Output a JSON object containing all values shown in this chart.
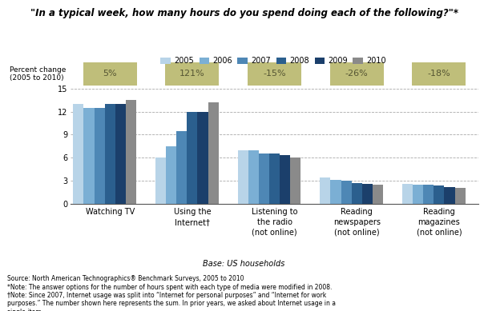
{
  "title": "\"In a typical week, how many hours do you spend doing each of the following?\"*",
  "categories": [
    "Watching TV",
    "Using the\nInternet†",
    "Listening to\nthe radio\n(not online)",
    "Reading\nnewspapers\n(not online)",
    "Reading\nmagazines\n(not online)"
  ],
  "years": [
    "2005",
    "2006",
    "2007",
    "2008",
    "2009",
    "2010"
  ],
  "bar_colors": [
    "#b8d4e8",
    "#7bafd4",
    "#4e87b5",
    "#2b5f8e",
    "#1b3f6b",
    "#8a8a8a"
  ],
  "values": [
    [
      13.0,
      12.5,
      12.5,
      13.0,
      13.0,
      13.5
    ],
    [
      6.0,
      7.5,
      9.5,
      12.0,
      12.0,
      13.2
    ],
    [
      7.0,
      7.0,
      6.5,
      6.5,
      6.3,
      6.0
    ],
    [
      3.4,
      3.1,
      3.0,
      2.7,
      2.6,
      2.5
    ],
    [
      2.6,
      2.5,
      2.5,
      2.4,
      2.2,
      2.1
    ]
  ],
  "percent_changes": [
    "5%",
    "121%",
    "-15%",
    "-26%",
    "-18%"
  ],
  "percent_box_color": "#bfbe7a",
  "percent_box_text_color": "#555533",
  "ylim": [
    0,
    15
  ],
  "yticks": [
    0,
    3,
    6,
    9,
    12,
    15
  ],
  "ylabel_left": "Percent change\n(2005 to 2010)",
  "base_text": "Base: US households",
  "source_text": "Source: North American Technographics® Benchmark Surveys, 2005 to 2010\n*Note: The answer options for the number of hours spent with each type of media were modified in 2008.\n†Note: Since 2007, Internet usage was split into “Internet for personal purposes” and “Internet for work\npurposes.” The number shown here represents the sum. In prior years, we asked about Internet usage in a\nsingle item.",
  "background_color": "#ffffff",
  "fig_width": 6.09,
  "fig_height": 3.89,
  "dpi": 100
}
